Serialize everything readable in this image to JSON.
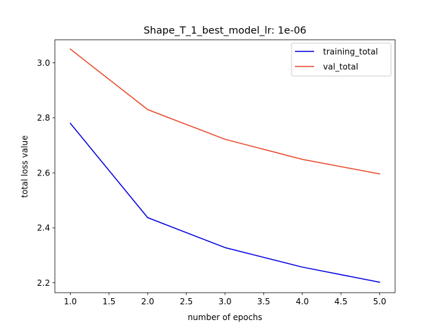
{
  "chart_data": {
    "type": "line",
    "title": "Shape_T_1_best_model_lr: 1e-06",
    "xlabel": "number of epochs",
    "ylabel": "total loss value",
    "x": [
      1.0,
      2.0,
      3.0,
      4.0,
      5.0
    ],
    "series": [
      {
        "name": "training_total",
        "color": "#0000dd",
        "values": [
          2.78,
          2.437,
          2.328,
          2.257,
          2.202
        ]
      },
      {
        "name": "val_total",
        "color": "#e8472a",
        "values": [
          3.05,
          2.83,
          2.722,
          2.649,
          2.596
        ]
      }
    ],
    "xlim": [
      0.8,
      5.2
    ],
    "ylim": [
      2.164,
      3.084
    ],
    "xticks": [
      1.0,
      1.5,
      2.0,
      2.5,
      3.0,
      3.5,
      4.0,
      4.5,
      5.0
    ],
    "xtick_labels": [
      "1.0",
      "1.5",
      "2.0",
      "2.5",
      "3.0",
      "3.5",
      "4.0",
      "4.5",
      "5.0"
    ],
    "yticks": [
      2.2,
      2.4,
      2.6,
      2.8,
      3.0
    ],
    "ytick_labels": [
      "2.2",
      "2.4",
      "2.6",
      "2.8",
      "3.0"
    ],
    "grid": false,
    "legend_position": "top-right"
  }
}
